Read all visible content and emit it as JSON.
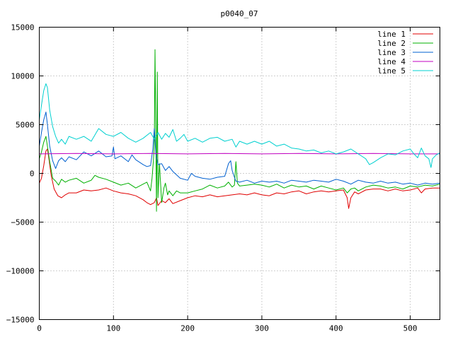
{
  "chart_data": {
    "type": "line",
    "title": "p0040_07",
    "xlabel": "",
    "ylabel": "",
    "xlim": [
      0,
      540
    ],
    "ylim": [
      -15000,
      15000
    ],
    "grid": true,
    "legend_position": "top-right",
    "x_ticks": [
      0,
      100,
      200,
      300,
      400,
      500
    ],
    "y_ticks": [
      -15000,
      -10000,
      -5000,
      0,
      5000,
      10000,
      15000
    ],
    "x_tick_labels": [
      "0",
      "100",
      "200",
      "300",
      "400",
      "500"
    ],
    "y_tick_labels": [
      "−15000",
      "−10000",
      "−5000",
      "0",
      "5000",
      "10000",
      "15000"
    ],
    "series": [
      {
        "name": "line 1",
        "color": "#e00000",
        "points": [
          [
            0,
            -1000
          ],
          [
            3,
            -500
          ],
          [
            6,
            800
          ],
          [
            9,
            2300
          ],
          [
            11,
            2500
          ],
          [
            13,
            1500
          ],
          [
            16,
            -200
          ],
          [
            20,
            -1600
          ],
          [
            25,
            -2300
          ],
          [
            30,
            -2500
          ],
          [
            35,
            -2200
          ],
          [
            40,
            -2000
          ],
          [
            50,
            -2000
          ],
          [
            60,
            -1700
          ],
          [
            70,
            -1800
          ],
          [
            80,
            -1700
          ],
          [
            90,
            -1500
          ],
          [
            100,
            -1800
          ],
          [
            110,
            -2000
          ],
          [
            120,
            -2100
          ],
          [
            130,
            -2300
          ],
          [
            140,
            -2700
          ],
          [
            145,
            -3000
          ],
          [
            150,
            -3200
          ],
          [
            155,
            -3000
          ],
          [
            158,
            -2500
          ],
          [
            160,
            -3300
          ],
          [
            165,
            -2800
          ],
          [
            170,
            -3000
          ],
          [
            175,
            -2600
          ],
          [
            180,
            -3100
          ],
          [
            190,
            -2800
          ],
          [
            200,
            -2500
          ],
          [
            210,
            -2300
          ],
          [
            220,
            -2400
          ],
          [
            230,
            -2200
          ],
          [
            240,
            -2400
          ],
          [
            250,
            -2300
          ],
          [
            260,
            -2200
          ],
          [
            270,
            -2100
          ],
          [
            280,
            -2200
          ],
          [
            290,
            -2000
          ],
          [
            300,
            -2200
          ],
          [
            310,
            -2300
          ],
          [
            320,
            -2000
          ],
          [
            330,
            -2100
          ],
          [
            340,
            -1900
          ],
          [
            350,
            -1800
          ],
          [
            360,
            -2100
          ],
          [
            370,
            -1900
          ],
          [
            380,
            -1800
          ],
          [
            390,
            -1900
          ],
          [
            400,
            -1800
          ],
          [
            410,
            -1700
          ],
          [
            415,
            -2500
          ],
          [
            417,
            -3600
          ],
          [
            420,
            -2500
          ],
          [
            425,
            -1900
          ],
          [
            430,
            -2100
          ],
          [
            440,
            -1700
          ],
          [
            450,
            -1600
          ],
          [
            460,
            -1600
          ],
          [
            470,
            -1800
          ],
          [
            480,
            -1600
          ],
          [
            490,
            -1800
          ],
          [
            500,
            -1700
          ],
          [
            510,
            -1500
          ],
          [
            515,
            -2000
          ],
          [
            520,
            -1600
          ],
          [
            530,
            -1500
          ],
          [
            540,
            -1500
          ]
        ]
      },
      {
        "name": "line 2",
        "color": "#00b000",
        "points": [
          [
            0,
            1500
          ],
          [
            3,
            2200
          ],
          [
            6,
            3200
          ],
          [
            9,
            3800
          ],
          [
            11,
            2800
          ],
          [
            14,
            1200
          ],
          [
            18,
            -500
          ],
          [
            22,
            -800
          ],
          [
            26,
            -1200
          ],
          [
            30,
            -600
          ],
          [
            35,
            -900
          ],
          [
            40,
            -700
          ],
          [
            50,
            -500
          ],
          [
            60,
            -1000
          ],
          [
            70,
            -700
          ],
          [
            75,
            -200
          ],
          [
            80,
            -400
          ],
          [
            90,
            -600
          ],
          [
            100,
            -900
          ],
          [
            110,
            -1200
          ],
          [
            120,
            -1000
          ],
          [
            130,
            -1500
          ],
          [
            140,
            -1100
          ],
          [
            145,
            -900
          ],
          [
            150,
            -1800
          ],
          [
            152,
            -500
          ],
          [
            154,
            1500
          ],
          [
            155,
            3000
          ],
          [
            156,
            12700
          ],
          [
            157,
            4000
          ],
          [
            158,
            -3900
          ],
          [
            159,
            10400
          ],
          [
            160,
            -2500
          ],
          [
            162,
            1000
          ],
          [
            165,
            -3000
          ],
          [
            168,
            -1500
          ],
          [
            170,
            -1000
          ],
          [
            173,
            -2200
          ],
          [
            175,
            -1800
          ],
          [
            180,
            -2300
          ],
          [
            185,
            -1800
          ],
          [
            190,
            -2000
          ],
          [
            200,
            -2000
          ],
          [
            210,
            -1800
          ],
          [
            220,
            -1600
          ],
          [
            230,
            -1200
          ],
          [
            240,
            -1500
          ],
          [
            250,
            -1300
          ],
          [
            255,
            -900
          ],
          [
            260,
            -1400
          ],
          [
            263,
            -1200
          ],
          [
            265,
            1200
          ],
          [
            267,
            -1000
          ],
          [
            270,
            -1300
          ],
          [
            280,
            -1200
          ],
          [
            290,
            -1100
          ],
          [
            300,
            -1200
          ],
          [
            310,
            -1400
          ],
          [
            320,
            -1100
          ],
          [
            330,
            -1500
          ],
          [
            340,
            -1200
          ],
          [
            350,
            -1400
          ],
          [
            360,
            -1300
          ],
          [
            370,
            -1600
          ],
          [
            380,
            -1300
          ],
          [
            390,
            -1500
          ],
          [
            400,
            -1700
          ],
          [
            410,
            -1500
          ],
          [
            415,
            -2000
          ],
          [
            420,
            -1600
          ],
          [
            425,
            -1500
          ],
          [
            430,
            -1800
          ],
          [
            440,
            -1400
          ],
          [
            450,
            -1200
          ],
          [
            460,
            -1300
          ],
          [
            470,
            -1500
          ],
          [
            480,
            -1400
          ],
          [
            490,
            -1600
          ],
          [
            500,
            -1300
          ],
          [
            510,
            -1400
          ],
          [
            520,
            -1200
          ],
          [
            530,
            -1300
          ],
          [
            540,
            -1100
          ]
        ]
      },
      {
        "name": "line 3",
        "color": "#0060d0",
        "points": [
          [
            0,
            2800
          ],
          [
            3,
            4200
          ],
          [
            6,
            5500
          ],
          [
            9,
            6300
          ],
          [
            11,
            5000
          ],
          [
            14,
            2800
          ],
          [
            18,
            1300
          ],
          [
            22,
            500
          ],
          [
            26,
            1300
          ],
          [
            30,
            1600
          ],
          [
            35,
            1200
          ],
          [
            40,
            1700
          ],
          [
            50,
            1400
          ],
          [
            60,
            2200
          ],
          [
            70,
            1800
          ],
          [
            80,
            2300
          ],
          [
            90,
            1700
          ],
          [
            98,
            1800
          ],
          [
            100,
            2700
          ],
          [
            102,
            1500
          ],
          [
            110,
            1800
          ],
          [
            120,
            1200
          ],
          [
            125,
            1900
          ],
          [
            130,
            1400
          ],
          [
            140,
            900
          ],
          [
            145,
            700
          ],
          [
            150,
            800
          ],
          [
            153,
            2500
          ],
          [
            155,
            4600
          ],
          [
            157,
            2000
          ],
          [
            160,
            900
          ],
          [
            165,
            1000
          ],
          [
            170,
            300
          ],
          [
            175,
            700
          ],
          [
            180,
            200
          ],
          [
            190,
            -500
          ],
          [
            200,
            -700
          ],
          [
            205,
            0
          ],
          [
            210,
            -300
          ],
          [
            220,
            -500
          ],
          [
            230,
            -600
          ],
          [
            240,
            -400
          ],
          [
            250,
            -300
          ],
          [
            255,
            1000
          ],
          [
            258,
            1300
          ],
          [
            260,
            300
          ],
          [
            263,
            -400
          ],
          [
            265,
            -800
          ],
          [
            270,
            -900
          ],
          [
            280,
            -700
          ],
          [
            290,
            -1000
          ],
          [
            300,
            -800
          ],
          [
            310,
            -900
          ],
          [
            320,
            -800
          ],
          [
            330,
            -1000
          ],
          [
            340,
            -700
          ],
          [
            350,
            -800
          ],
          [
            360,
            -900
          ],
          [
            370,
            -700
          ],
          [
            380,
            -800
          ],
          [
            390,
            -900
          ],
          [
            400,
            -600
          ],
          [
            410,
            -800
          ],
          [
            420,
            -1100
          ],
          [
            430,
            -700
          ],
          [
            440,
            -900
          ],
          [
            450,
            -1000
          ],
          [
            460,
            -800
          ],
          [
            470,
            -1000
          ],
          [
            480,
            -900
          ],
          [
            490,
            -1100
          ],
          [
            500,
            -1000
          ],
          [
            510,
            -1200
          ],
          [
            520,
            -1000
          ],
          [
            530,
            -1100
          ],
          [
            540,
            -1000
          ]
        ]
      },
      {
        "name": "line 4",
        "color": "#c000c0",
        "points": [
          [
            0,
            2000
          ],
          [
            50,
            2050
          ],
          [
            100,
            2000
          ],
          [
            150,
            2050
          ],
          [
            200,
            2000
          ],
          [
            250,
            2050
          ],
          [
            300,
            2000
          ],
          [
            350,
            2050
          ],
          [
            400,
            2000
          ],
          [
            450,
            2050
          ],
          [
            500,
            2000
          ],
          [
            540,
            2000
          ]
        ]
      },
      {
        "name": "line 5",
        "color": "#00d0d0",
        "points": [
          [
            0,
            5500
          ],
          [
            3,
            7000
          ],
          [
            6,
            8500
          ],
          [
            9,
            9200
          ],
          [
            11,
            8800
          ],
          [
            14,
            6500
          ],
          [
            18,
            4800
          ],
          [
            22,
            3800
          ],
          [
            26,
            3100
          ],
          [
            30,
            3500
          ],
          [
            35,
            3000
          ],
          [
            40,
            3800
          ],
          [
            50,
            3500
          ],
          [
            60,
            3800
          ],
          [
            70,
            3300
          ],
          [
            80,
            4600
          ],
          [
            90,
            4000
          ],
          [
            100,
            3800
          ],
          [
            110,
            4200
          ],
          [
            120,
            3600
          ],
          [
            130,
            3200
          ],
          [
            140,
            3600
          ],
          [
            150,
            4200
          ],
          [
            155,
            3500
          ],
          [
            160,
            4200
          ],
          [
            165,
            3500
          ],
          [
            170,
            4100
          ],
          [
            175,
            3700
          ],
          [
            180,
            4500
          ],
          [
            185,
            3300
          ],
          [
            190,
            3600
          ],
          [
            195,
            4000
          ],
          [
            200,
            3300
          ],
          [
            210,
            3600
          ],
          [
            220,
            3200
          ],
          [
            230,
            3600
          ],
          [
            240,
            3700
          ],
          [
            250,
            3300
          ],
          [
            260,
            3500
          ],
          [
            265,
            2700
          ],
          [
            270,
            3300
          ],
          [
            280,
            3000
          ],
          [
            290,
            3300
          ],
          [
            300,
            3000
          ],
          [
            310,
            3300
          ],
          [
            320,
            2800
          ],
          [
            330,
            3000
          ],
          [
            340,
            2600
          ],
          [
            350,
            2500
          ],
          [
            360,
            2300
          ],
          [
            370,
            2400
          ],
          [
            380,
            2100
          ],
          [
            390,
            2300
          ],
          [
            400,
            2000
          ],
          [
            410,
            2200
          ],
          [
            420,
            2500
          ],
          [
            430,
            2000
          ],
          [
            440,
            1500
          ],
          [
            445,
            900
          ],
          [
            450,
            1100
          ],
          [
            460,
            1600
          ],
          [
            470,
            2000
          ],
          [
            480,
            1900
          ],
          [
            490,
            2300
          ],
          [
            500,
            2500
          ],
          [
            505,
            2000
          ],
          [
            510,
            1600
          ],
          [
            515,
            2600
          ],
          [
            520,
            1800
          ],
          [
            525,
            1500
          ],
          [
            528,
            600
          ],
          [
            530,
            1500
          ],
          [
            535,
            1900
          ],
          [
            540,
            2100
          ]
        ]
      }
    ]
  }
}
